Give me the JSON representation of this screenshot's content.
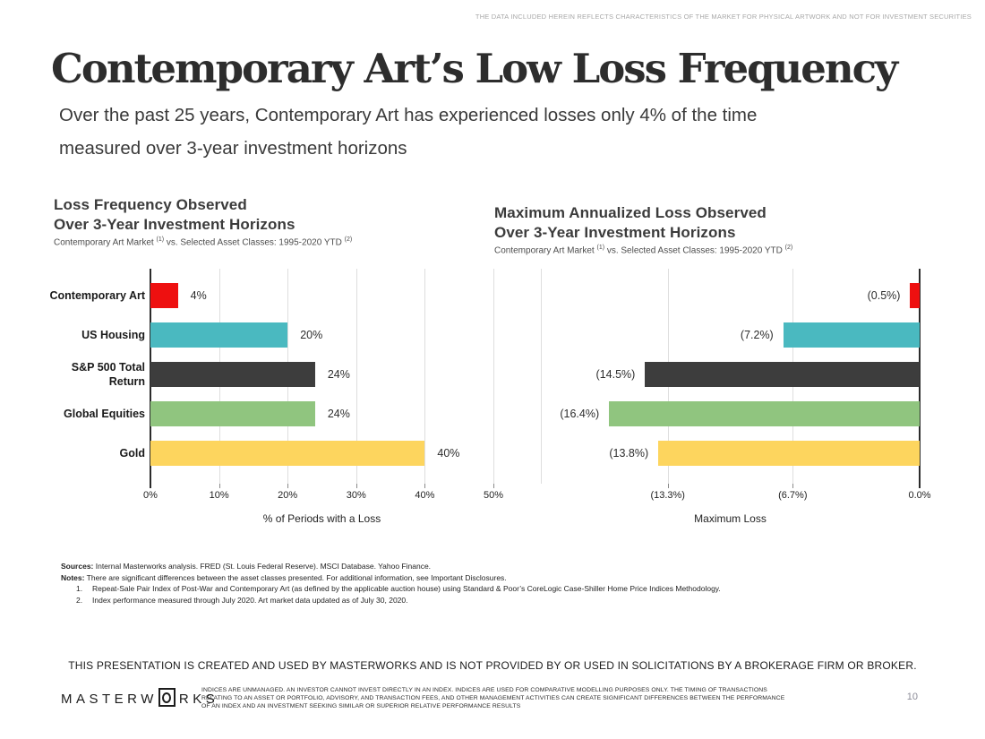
{
  "page": {
    "top_disclaimer": "THE DATA INCLUDED HEREIN REFLECTS CHARACTERISTICS OF THE MARKET FOR PHYSICAL ARTWORK AND NOT FOR INVESTMENT SECURITIES",
    "title": "Contemporary Art’s Low Loss Frequency",
    "subtitle_line1": "Over the past 25 years, Contemporary Art has experienced losses only 4% of the time",
    "subtitle_line2": "measured over 3-year investment horizons",
    "page_number": "10"
  },
  "chart_data": [
    {
      "type": "bar",
      "orientation": "horizontal-left-anchored",
      "title_line1": "Loss Frequency Observed",
      "title_line2": "Over 3-Year Investment Horizons",
      "subtitle_pre": "Contemporary Art Market ",
      "subtitle_sup1": "(1)",
      "subtitle_mid": " vs. Selected Asset Classes: 1995-2020 YTD ",
      "subtitle_sup2": "(2)",
      "categories": [
        "Contemporary Art",
        "US Housing",
        "S&P 500 Total Return",
        "Global Equities",
        "Gold"
      ],
      "values": [
        4,
        20,
        24,
        24,
        40
      ],
      "value_labels": [
        "4%",
        "20%",
        "24%",
        "24%",
        "40%"
      ],
      "bar_colors": [
        "#ee1010",
        "#4ab9c0",
        "#3d3d3d",
        "#90c57f",
        "#fdd55e"
      ],
      "xlabel": "% of Periods with a Loss",
      "xlim": [
        0,
        50
      ],
      "xticks": [
        0,
        10,
        20,
        30,
        40,
        50
      ],
      "xtick_labels": [
        "0%",
        "10%",
        "20%",
        "30%",
        "40%",
        "50%"
      ],
      "grid": true,
      "legend": "none"
    },
    {
      "type": "bar",
      "orientation": "horizontal-right-anchored",
      "title_line1": "Maximum Annualized Loss Observed",
      "title_line2": "Over 3-Year Investment Horizons",
      "subtitle_pre": "Contemporary Art Market ",
      "subtitle_sup1": "(1)",
      "subtitle_mid": " vs. Selected Asset Classes: 1995-2020 YTD ",
      "subtitle_sup2": "(2)",
      "categories": [
        "Contemporary Art",
        "US Housing",
        "S&P 500 Total Return",
        "Global Equities",
        "Gold"
      ],
      "values": [
        -0.5,
        -7.2,
        -14.5,
        -16.4,
        -13.8
      ],
      "value_labels": [
        "(0.5%)",
        "(7.2%)",
        "(14.5%)",
        "(16.4%)",
        "(13.8%)"
      ],
      "bar_colors": [
        "#ee1010",
        "#4ab9c0",
        "#3d3d3d",
        "#90c57f",
        "#fdd55e"
      ],
      "xlabel": "Maximum Loss",
      "xlim": [
        -20,
        0
      ],
      "xticks": [
        -20,
        -13.3,
        -6.7,
        0
      ],
      "xtick_labels": [
        "",
        "(13.3%)",
        "(6.7%)",
        "0.0%"
      ],
      "grid": true,
      "legend": "none"
    }
  ],
  "footer": {
    "sources_label": "Sources:",
    "sources_text": " Internal Masterworks analysis. FRED (St. Louis Federal Reserve). MSCI Database. Yahoo Finance.",
    "notes_label": "Notes:",
    "notes_text": "  There are significant differences between the asset classes presented. For additional information, see Important Disclosures.",
    "note_items": [
      {
        "num": "1.",
        "text": "Repeat-Sale Pair Index of Post-War and Contemporary Art (as defined by the applicable auction house) using Standard & Poor’s CoreLogic Case-Shiller Home Price Indices Methodology."
      },
      {
        "num": "2.",
        "text": "Index performance measured through July 2020. Art market data updated as of July 30, 2020."
      }
    ],
    "presentation_disclaimer": "THIS PRESENTATION  IS CREATED AND USED BY MASTERWORKS AND IS NOT PROVIDED BY OR USED IN SOLICITATIONS BY A BROKERAGE FIRM OR BROKER.",
    "logo_part1": "MASTERW",
    "logo_part2": "RKS",
    "fine_print": "INDICES ARE UNMANAGED. AN INVESTOR CANNOT INVEST DIRECTLY IN AN INDEX. INDICES ARE USED FOR COMPARATIVE MODELLING PURPOSES ONLY. THE TIMING OF TRANSACTIONS RELATING TO AN ASSET OR PORTFOLIO, ADVISORY, AND TRANSACTION FEES, AND OTHER MANAGEMENT ACTIVITIES CAN CREATE SIGNIFICANT DIFFERENCES BETWEEN THE PERFORMANCE OF AN INDEX AND AN INVESTMENT SEEKING SIMILAR OR SUPERIOR RELATIVE PERFORMANCE RESULTS"
  }
}
